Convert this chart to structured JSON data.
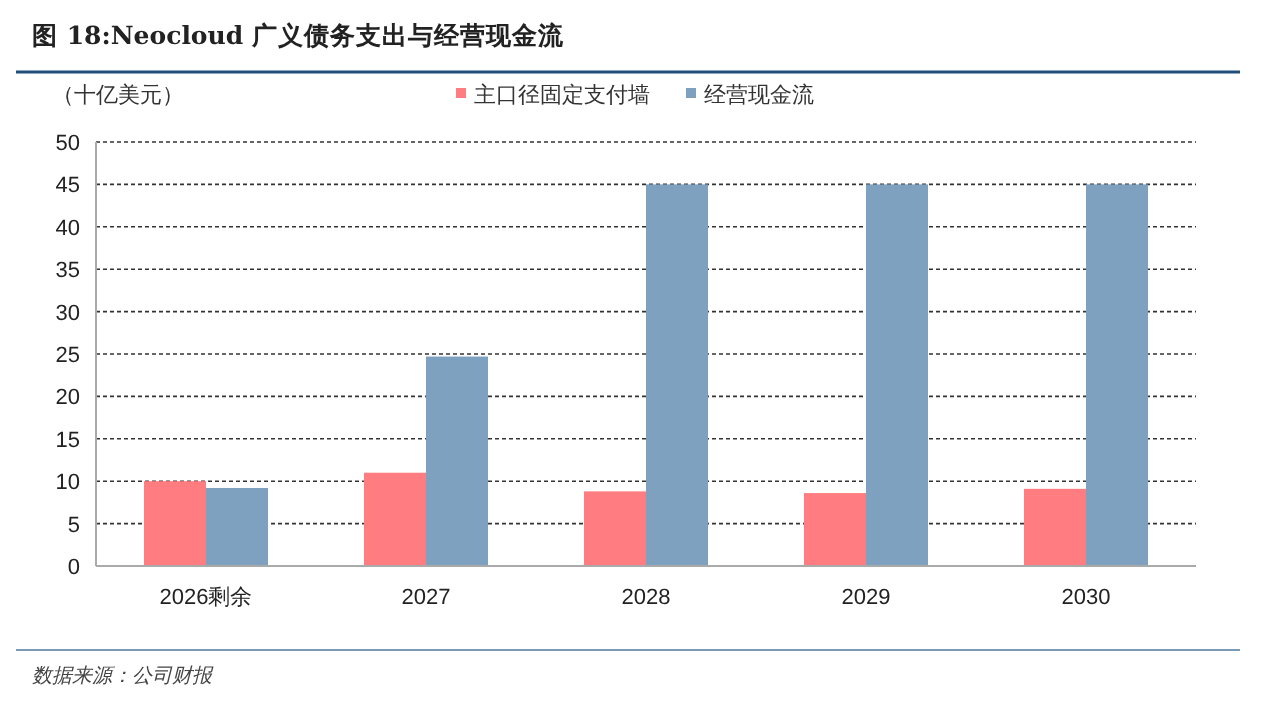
{
  "chart_data": {
    "type": "bar",
    "title": "图 18:Neocloud 广义债务支出与经营现金流",
    "ylabel": "（十亿美元）",
    "categories": [
      "2026剩余",
      "2027",
      "2028",
      "2029",
      "2030"
    ],
    "series": [
      {
        "name": "主口径固定支付墙",
        "color": "#ff7c80",
        "values": [
          10,
          11,
          8.8,
          8.6,
          9.1
        ]
      },
      {
        "name": "经营现金流",
        "color": "#7ea1bf",
        "values": [
          9.2,
          24.7,
          45,
          45,
          45
        ]
      }
    ],
    "ylim": [
      0,
      50
    ],
    "yticks": [
      0,
      5,
      10,
      15,
      20,
      25,
      30,
      35,
      40,
      45,
      50
    ],
    "grid": "y",
    "legend": "top",
    "annotations": [
      "数据来源：公司财报"
    ]
  }
}
